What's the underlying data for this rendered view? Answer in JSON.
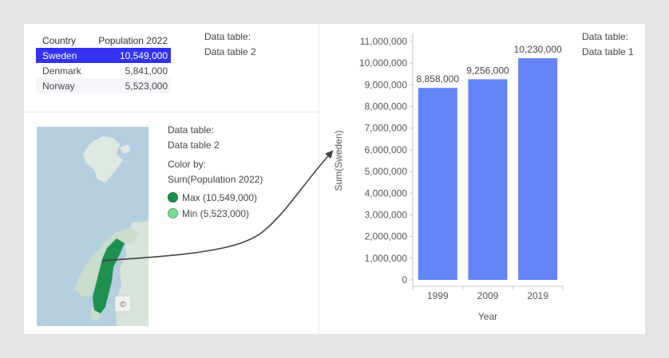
{
  "table": {
    "headers": [
      "Country",
      "Population 2022"
    ],
    "rows": [
      {
        "country": "Sweden",
        "population": "10,549,000",
        "selected": true
      },
      {
        "country": "Denmark",
        "population": "5,841,000",
        "selected": false
      },
      {
        "country": "Norway",
        "population": "5,523,000",
        "selected": false
      }
    ]
  },
  "table_legend": {
    "label": "Data table:",
    "value": "Data table 2"
  },
  "map_legend": {
    "data_label": "Data table:",
    "data_value": "Data table 2",
    "color_label": "Color by:",
    "color_value": "Sum(Population 2022)",
    "max_label": "Max (10,549,000)",
    "min_label": "Min (5,523,000)",
    "max_color": "#1e9150",
    "min_color": "#78dc96",
    "map_icon": "©"
  },
  "chart_legend": {
    "label": "Data table:",
    "value": "Data table 1"
  },
  "chart_data": {
    "type": "bar",
    "categories": [
      "1999",
      "2009",
      "2019"
    ],
    "values": [
      8858000,
      9256000,
      10230000
    ],
    "data_labels": [
      "8,858,000",
      "9,256,000",
      "10,230,000"
    ],
    "xlabel": "Year",
    "ylabel": "Sum(Sweden)",
    "ylim": [
      0,
      11000000
    ],
    "yticks": [
      0,
      1000000,
      2000000,
      3000000,
      4000000,
      5000000,
      6000000,
      7000000,
      8000000,
      9000000,
      10000000,
      11000000
    ],
    "ytick_labels": [
      "0",
      "1,000,000",
      "2,000,000",
      "3,000,000",
      "4,000,000",
      "5,000,000",
      "6,000,000",
      "7,000,000",
      "8,000,000",
      "9,000,000",
      "10,000,000",
      "11,000,000"
    ],
    "bar_color": "#6385f7",
    "grid": false
  }
}
